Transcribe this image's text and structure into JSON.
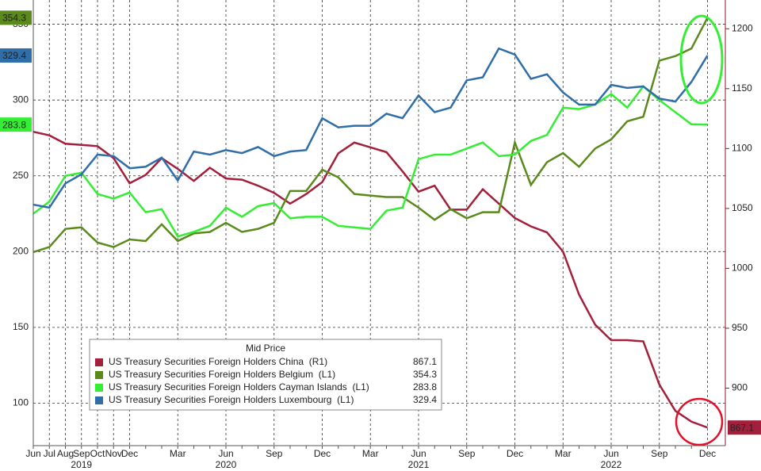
{
  "chart_data": {
    "type": "line",
    "categories": [
      "Jun",
      "Jul",
      "Aug",
      "Sep",
      "Oct",
      "Nov",
      "Dec",
      null,
      null,
      "Mar",
      null,
      null,
      "Jun",
      null,
      null,
      "Sep",
      null,
      null,
      "Dec",
      null,
      null,
      "Mar",
      null,
      null,
      "Jun",
      null,
      null,
      "Sep",
      null,
      null,
      "Dec",
      null,
      null,
      "Mar",
      null,
      null,
      "Jun",
      null,
      null,
      "Sep",
      null,
      null,
      "Dec"
    ],
    "years": [
      "2019",
      "2020",
      "2021",
      "2022"
    ],
    "year_categories": [
      3,
      12,
      24,
      36
    ],
    "ylim": [
      72,
      366
    ],
    "yticks": [
      100,
      150,
      200,
      250,
      300,
      350
    ],
    "y2lim": [
      852,
      1224
    ],
    "y2ticks": [
      900,
      950,
      1000,
      1050,
      1100,
      1150,
      1200
    ],
    "grid": true,
    "legend_title": "Mid Price",
    "series": [
      {
        "name": "US Treasury Securities Foreign Holders China  (R1)",
        "color": "#a3203c",
        "axis": "y2",
        "values": [
          1114,
          1111,
          1104,
          1103,
          1102,
          1092,
          1071,
          1078,
          1092,
          1083,
          1073,
          1084,
          1075,
          1074,
          1069,
          1063,
          1054,
          1062,
          1072,
          1096,
          1105,
          1101,
          1097,
          1081,
          1064,
          1069,
          1049,
          1049,
          1066,
          1054,
          1042,
          1035,
          1030,
          1014,
          978,
          953,
          940,
          940,
          939,
          903,
          881,
          872,
          867.1
        ]
      },
      {
        "name": "US Treasury Securities Foreign Holders Belgium  (L1)",
        "color": "#5b8a1c",
        "values": [
          199.7,
          203,
          215,
          216,
          206,
          203,
          208,
          207,
          218,
          207,
          212,
          213,
          219,
          213,
          215,
          219,
          240,
          240,
          254,
          249,
          238,
          237,
          236,
          236,
          229,
          221,
          228,
          222,
          226,
          226,
          272,
          244,
          259,
          265,
          256,
          268,
          274,
          286,
          289,
          326,
          329,
          334,
          354.3
        ]
      },
      {
        "name": "US Treasury Securities Foreign Holders Cayman Islands  (L1)",
        "color": "#33ee33",
        "values": [
          225,
          233,
          250,
          252,
          238,
          235,
          239,
          226,
          228,
          210,
          213,
          217,
          229,
          223,
          230,
          232,
          222,
          223,
          223,
          217,
          216,
          215,
          227,
          229,
          261,
          264,
          264,
          268,
          272,
          263,
          264,
          273,
          277,
          295,
          294,
          297,
          304,
          295,
          309,
          300,
          292,
          284,
          283.8
        ]
      },
      {
        "name": "US Treasury Securities Foreign Holders Luxembourg  (L1)",
        "color": "#2f6ea8",
        "values": [
          231,
          229,
          245,
          251,
          264,
          263,
          255,
          256,
          262,
          247,
          266,
          264,
          267,
          265,
          269,
          263,
          266,
          267,
          288,
          282,
          283,
          283,
          291,
          288,
          303,
          292,
          295,
          313,
          315,
          334,
          330,
          314,
          317,
          305,
          297,
          297,
          310,
          308,
          309,
          301,
          299,
          312,
          329.4
        ]
      }
    ]
  }
}
